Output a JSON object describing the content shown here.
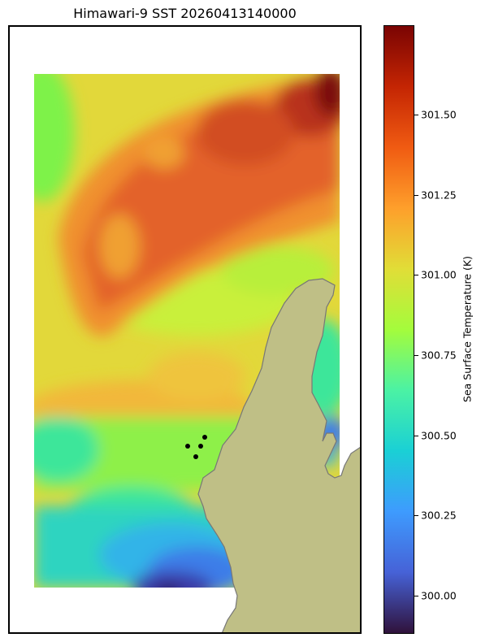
{
  "title": "Himawari-9 SST 20260413140000",
  "colorbar": {
    "label": "Sea Surface Temperature (K)",
    "range": [
      299.88,
      301.78
    ],
    "ticks": [
      "301.50",
      "301.25",
      "301.00",
      "300.75",
      "300.50",
      "300.25",
      "300.00"
    ],
    "colormap": "turbo"
  },
  "colors": {
    "land": "#bfbf86",
    "coast": "#777777",
    "marker": "#000000"
  }
}
